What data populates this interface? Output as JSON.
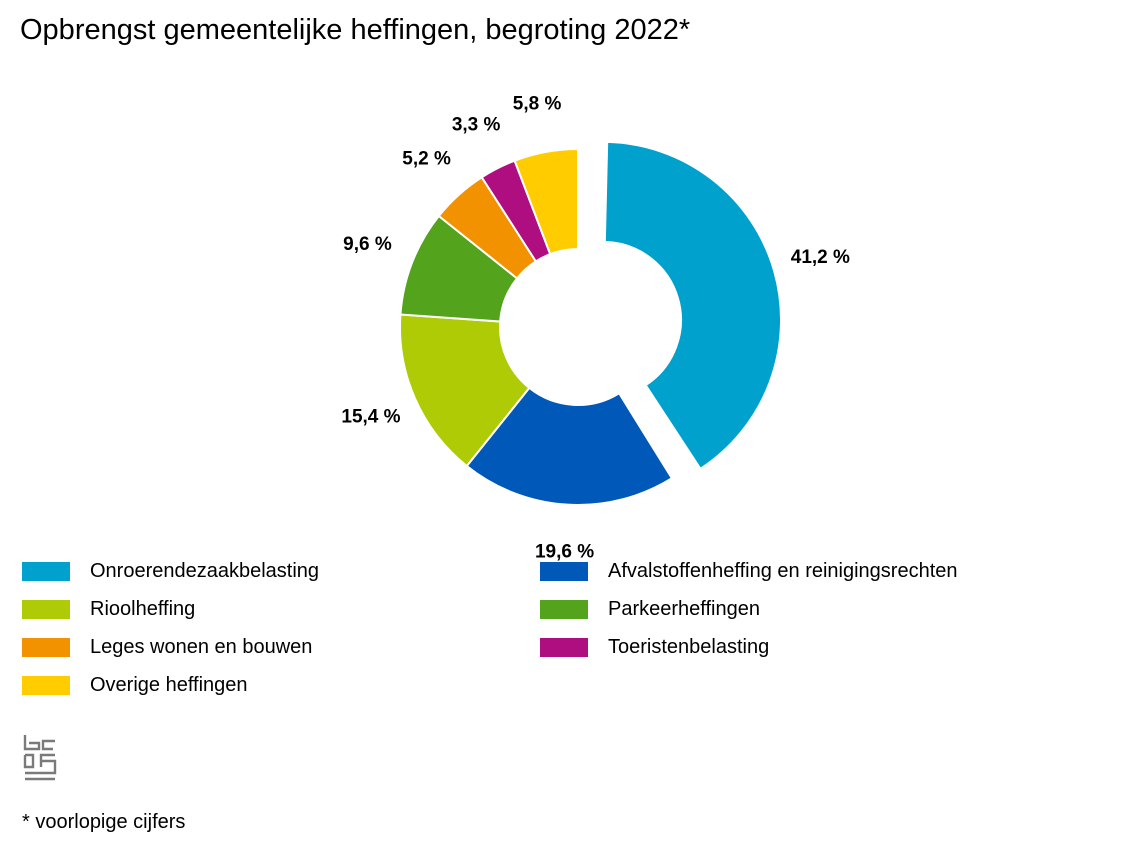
{
  "title": "Opbrengst gemeentelijke heffingen, begroting 2022*",
  "footnote": "* voorlopige cijfers",
  "logo": {
    "icon": "cbs-logo-icon"
  },
  "chart_data": {
    "type": "pie",
    "variant": "donut",
    "title": "Opbrengst gemeentelijke heffingen, begroting 2022*",
    "legend_position": "bottom",
    "slices": [
      {
        "name": "Onroerendezaakbelasting",
        "value": 41.2,
        "label": "41,2 %",
        "color": "#00a1cd",
        "exploded": true
      },
      {
        "name": "Afvalstoffenheffing en reinigingsrechten",
        "value": 19.6,
        "label": "19,6 %",
        "color": "#0058b8"
      },
      {
        "name": "Rioolheffing",
        "value": 15.4,
        "label": "15,4 %",
        "color": "#afcb05"
      },
      {
        "name": "Parkeerheffingen",
        "value": 9.6,
        "label": "9,6 %",
        "color": "#53a31d"
      },
      {
        "name": "Leges wonen en bouwen",
        "value": 5.2,
        "label": "5,2 %",
        "color": "#f39200"
      },
      {
        "name": "Toeristenbelasting",
        "value": 3.3,
        "label": "3,3 %",
        "color": "#af0e80"
      },
      {
        "name": "Overige heffingen",
        "value": 5.8,
        "label": "5,8 %",
        "color": "#ffcc00"
      }
    ],
    "legend_order": [
      "Onroerendezaakbelasting",
      "Afvalstoffenheffing en reinigingsrechten",
      "Rioolheffing",
      "Parkeerheffingen",
      "Leges wonen en bouwen",
      "Toeristenbelasting",
      "Overige heffingen"
    ]
  }
}
